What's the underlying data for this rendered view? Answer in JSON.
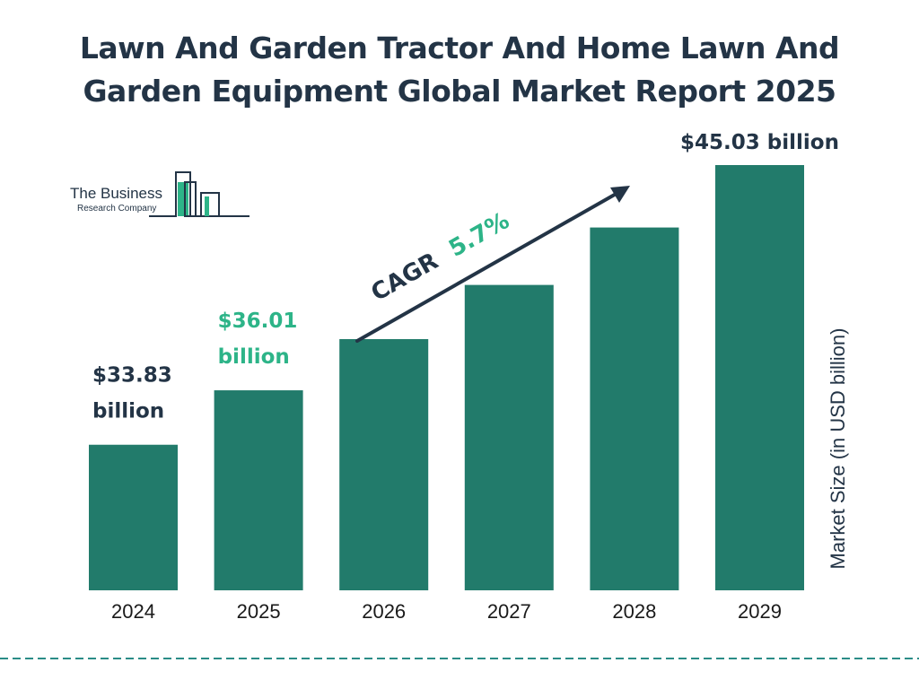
{
  "title": {
    "line1": "Lawn And Garden Tractor And Home Lawn And",
    "line2": "Garden Equipment Global Market Report 2025"
  },
  "logo": {
    "line1": "The Business",
    "line2": "Research Company"
  },
  "cagr": {
    "label": "CAGR",
    "value": "5.7%"
  },
  "colors": {
    "bar": "#227B6B",
    "title": "#233446",
    "accent": "#2DB488",
    "dash": "#2A8C87"
  },
  "chart_data": {
    "type": "bar",
    "categories": [
      "2024",
      "2025",
      "2026",
      "2027",
      "2028",
      "2029"
    ],
    "values": [
      33.83,
      36.01,
      38.06,
      40.23,
      42.53,
      45.03
    ],
    "ylabel": "Market Size (in USD billion)",
    "ylim": [
      28,
      45.03
    ],
    "grid": false,
    "data_labels": [
      {
        "category": "2024",
        "line1": "$33.83",
        "line2": "billion",
        "color": "#233446"
      },
      {
        "category": "2025",
        "line1": "$36.01",
        "line2": "billion",
        "color": "#2DB488"
      },
      {
        "category": "2029",
        "line1": "$45.03 billion",
        "line2": "",
        "color": "#233446"
      }
    ]
  }
}
